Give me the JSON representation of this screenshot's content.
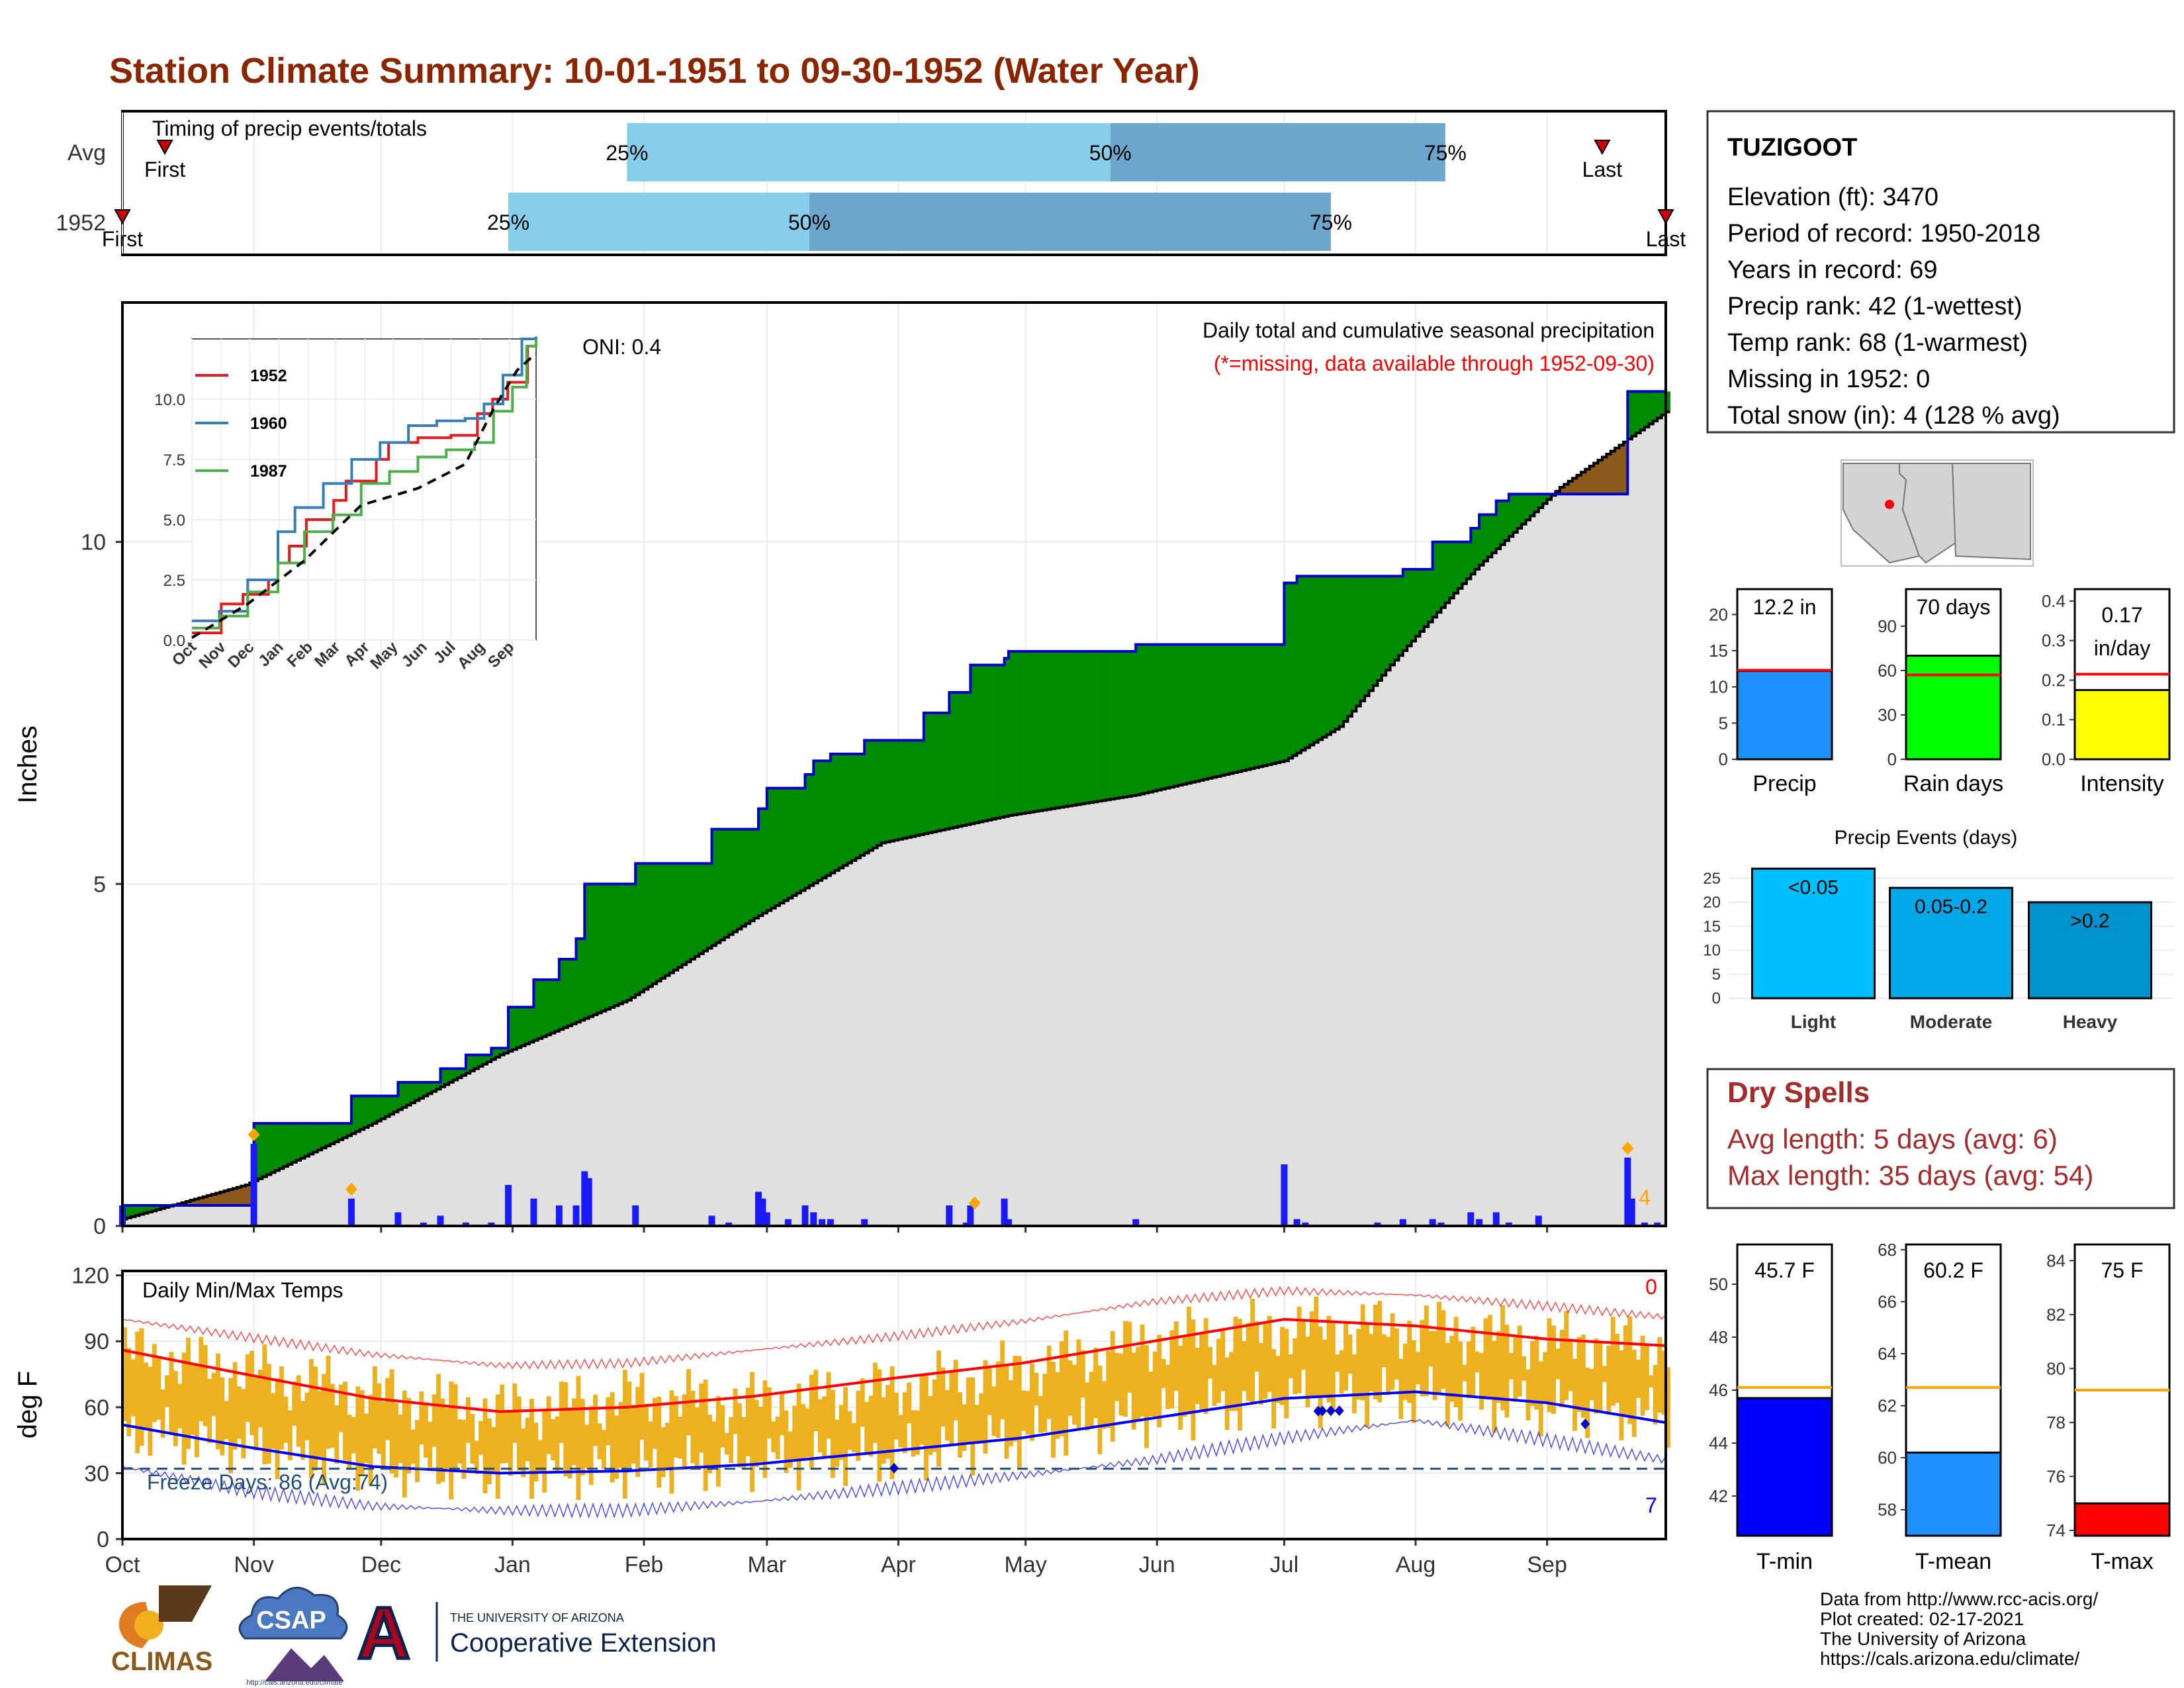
{
  "title": "Station Climate Summary: 10-01-1951 to 09-30-1952 (Water Year)",
  "colors": {
    "title": "#8B2500",
    "q_light": "#87CEEB",
    "q_dark": "#6CA6CD",
    "above": "#008B00",
    "below": "#8B5A1A",
    "cumfill": "#E0E0E0",
    "step": "#0000CD",
    "bars": "#1A1AFF",
    "orange": "#FFA500",
    "tempbar": "#EDB120",
    "tmax": "#FF0000",
    "tmin": "#0000FF"
  },
  "panels": {
    "timing": {
      "label": "Timing of precip events/totals",
      "rows": [
        {
          "label": "Avg",
          "first_label": "First",
          "last_label": "Last",
          "first_day": 11,
          "last_day": 350,
          "p25_day": 120,
          "p50_day": 234,
          "p75_day": 313
        },
        {
          "label": "1952",
          "first_label": "First",
          "last_label": "Last",
          "first_day": 1,
          "last_day": 365,
          "p25_day": 92,
          "p50_day": 163,
          "p75_day": 286
        }
      ],
      "pct_labels": [
        "25%",
        "50%",
        "75%"
      ]
    },
    "precip": {
      "ylabel": "Inches",
      "yticks": [
        "0",
        "5",
        "10"
      ],
      "oni": "ONI: 0.4",
      "note": "Daily total and cumulative seasonal precipitation",
      "note_red": "(*=missing, data available through 1952-09-30)",
      "snow_count": "4",
      "chart_data": {
        "type": "area",
        "ylim": [
          0,
          13.5
        ],
        "x_unit": "day of water year",
        "series": [
          {
            "name": "1952",
            "x": [
              1,
              32,
              32,
              55,
              55,
              66,
              66,
              76,
              76,
              82,
              82,
              88,
              88,
              92,
              92,
              98,
              98,
              104,
              104,
              108,
              108,
              110,
              110,
              122,
              122,
              140,
              140,
              151,
              151,
              153,
              153,
              162,
              162,
              164,
              164,
              168,
              168,
              176,
              176,
              190,
              190,
              196,
              196,
              201,
              201,
              209,
              209,
              210,
              210,
              240,
              240,
              275,
              275,
              278,
              278,
              303,
              303,
              310,
              310,
              319,
              319,
              321,
              321,
              325,
              325,
              328,
              328,
              335,
              335,
              356,
              356,
              365
            ],
            "y": [
              0.3,
              0.3,
              1.5,
              1.5,
              1.9,
              1.9,
              2.1,
              2.1,
              2.3,
              2.3,
              2.5,
              2.5,
              2.6,
              2.6,
              3.2,
              3.2,
              3.6,
              3.6,
              3.9,
              3.9,
              4.2,
              4.2,
              5.0,
              5.0,
              5.3,
              5.3,
              5.8,
              5.8,
              6.1,
              6.1,
              6.4,
              6.4,
              6.6,
              6.6,
              6.8,
              6.8,
              6.9,
              6.9,
              7.1,
              7.1,
              7.5,
              7.5,
              7.8,
              7.8,
              8.2,
              8.2,
              8.3,
              8.3,
              8.4,
              8.4,
              8.5,
              8.5,
              9.4,
              9.4,
              9.5,
              9.5,
              9.6,
              9.6,
              10.0,
              10.0,
              10.2,
              10.2,
              10.4,
              10.4,
              10.6,
              10.6,
              10.7,
              10.7,
              10.7,
              10.7,
              12.2,
              12.2
            ]
          },
          {
            "name": "Avg",
            "x": [
              1,
              30,
              60,
              90,
              120,
              150,
              180,
              210,
              240,
              275,
              288,
              300,
              320,
              340,
              365
            ],
            "y": [
              0.1,
              0.6,
              1.5,
              2.5,
              3.3,
              4.5,
              5.6,
              6.0,
              6.3,
              6.8,
              7.3,
              8.2,
              9.6,
              10.8,
              11.9
            ]
          }
        ],
        "daily_events": [
          {
            "day": 1,
            "in": 0.3
          },
          {
            "day": 32,
            "in": 1.2
          },
          {
            "day": 55,
            "in": 0.4
          },
          {
            "day": 66,
            "in": 0.2
          },
          {
            "day": 72,
            "in": 0.05
          },
          {
            "day": 76,
            "in": 0.15
          },
          {
            "day": 82,
            "in": 0.05
          },
          {
            "day": 88,
            "in": 0.05
          },
          {
            "day": 92,
            "in": 0.6
          },
          {
            "day": 98,
            "in": 0.4
          },
          {
            "day": 104,
            "in": 0.3
          },
          {
            "day": 108,
            "in": 0.3
          },
          {
            "day": 110,
            "in": 0.8
          },
          {
            "day": 111,
            "in": 0.7
          },
          {
            "day": 122,
            "in": 0.3
          },
          {
            "day": 140,
            "in": 0.15
          },
          {
            "day": 144,
            "in": 0.05
          },
          {
            "day": 151,
            "in": 0.5
          },
          {
            "day": 152,
            "in": 0.4
          },
          {
            "day": 153,
            "in": 0.2
          },
          {
            "day": 158,
            "in": 0.1
          },
          {
            "day": 162,
            "in": 0.3
          },
          {
            "day": 164,
            "in": 0.2
          },
          {
            "day": 166,
            "in": 0.1
          },
          {
            "day": 168,
            "in": 0.1
          },
          {
            "day": 176,
            "in": 0.1
          },
          {
            "day": 196,
            "in": 0.3
          },
          {
            "day": 200,
            "in": 0.05
          },
          {
            "day": 201,
            "in": 0.3
          },
          {
            "day": 209,
            "in": 0.4
          },
          {
            "day": 210,
            "in": 0.1
          },
          {
            "day": 240,
            "in": 0.1
          },
          {
            "day": 275,
            "in": 0.9
          },
          {
            "day": 278,
            "in": 0.1
          },
          {
            "day": 280,
            "in": 0.05
          },
          {
            "day": 297,
            "in": 0.05
          },
          {
            "day": 303,
            "in": 0.1
          },
          {
            "day": 310,
            "in": 0.1
          },
          {
            "day": 312,
            "in": 0.05
          },
          {
            "day": 319,
            "in": 0.2
          },
          {
            "day": 321,
            "in": 0.1
          },
          {
            "day": 325,
            "in": 0.2
          },
          {
            "day": 328,
            "in": 0.05
          },
          {
            "day": 335,
            "in": 0.15
          },
          {
            "day": 356,
            "in": 1.0
          },
          {
            "day": 357,
            "in": 0.4
          },
          {
            "day": 360,
            "in": 0.05
          },
          {
            "day": 363,
            "in": 0.05
          }
        ],
        "snow_days": [
          32,
          55,
          202,
          356
        ]
      },
      "inset": {
        "yticks": [
          "0.0",
          "2.5",
          "5.0",
          "7.5",
          "10.0"
        ],
        "xticks": [
          "Oct",
          "Nov",
          "Dec",
          "Jan",
          "Feb",
          "Mar",
          "Apr",
          "May",
          "Jun",
          "Jul",
          "Aug",
          "Sep"
        ],
        "chart_data": {
          "type": "line",
          "ylim": [
            0,
            12.5
          ],
          "series": [
            {
              "name": "1952",
              "color": "#E41A1C",
              "x": [
                1,
                32,
                55,
                82,
                92,
                104,
                122,
                151,
                164,
                196,
                209,
                240,
                275,
                303,
                319,
                335,
                356,
                365
              ],
              "y": [
                0.3,
                1.5,
                1.9,
                2.5,
                3.2,
                3.9,
                5.0,
                5.8,
                6.6,
                7.5,
                8.2,
                8.4,
                8.5,
                9.4,
                10.0,
                10.7,
                12.2,
                12.2
              ]
            },
            {
              "name": "1960",
              "color": "#377EB8",
              "x": [
                1,
                30,
                60,
                92,
                110,
                140,
                170,
                200,
                230,
                260,
                290,
                310,
                330,
                350,
                365
              ],
              "y": [
                0.8,
                1.2,
                2.5,
                4.5,
                5.5,
                6.5,
                7.5,
                8.2,
                8.9,
                9.1,
                9.2,
                9.8,
                11.0,
                12.5,
                12.6
              ]
            },
            {
              "name": "1987",
              "color": "#4DAF4A",
              "x": [
                1,
                30,
                60,
                92,
                120,
                150,
                180,
                210,
                240,
                270,
                300,
                320,
                340,
                355,
                365
              ],
              "y": [
                0.5,
                1.0,
                2.0,
                3.2,
                4.5,
                5.2,
                6.5,
                7.0,
                7.6,
                7.9,
                8.2,
                9.5,
                10.5,
                12.2,
                12.5
              ]
            }
          ],
          "avg": {
            "x": [
              1,
              60,
              120,
              180,
              240,
              290,
              320,
              345,
              365
            ],
            "y": [
              0.1,
              1.5,
              3.3,
              5.6,
              6.3,
              7.3,
              9.6,
              11.2,
              11.9
            ]
          }
        }
      }
    },
    "temps": {
      "label": "Daily Min/Max Temps",
      "ylabel": "deg F",
      "yticks": [
        "0",
        "30",
        "60",
        "90",
        "120"
      ],
      "freeze_text": "Freeze Days: 86 (Avg:74)",
      "count_red": "0",
      "count_blue": "7",
      "freeze_line": 32,
      "xticks": [
        "Oct",
        "Nov",
        "Dec",
        "Jan",
        "Feb",
        "Mar",
        "Apr",
        "May",
        "Jun",
        "Jul",
        "Aug",
        "Sep"
      ],
      "chart_data": {
        "type": "line",
        "ylim": [
          0,
          122
        ],
        "avg_max": {
          "x": [
            1,
            30,
            60,
            90,
            120,
            150,
            182,
            213,
            244,
            275,
            306,
            337,
            365
          ],
          "y": [
            86,
            75,
            64,
            58,
            60,
            65,
            73,
            80,
            90,
            100,
            97,
            91,
            88
          ]
        },
        "avg_min": {
          "x": [
            1,
            30,
            60,
            90,
            120,
            150,
            182,
            213,
            244,
            275,
            306,
            337,
            365
          ],
          "y": [
            52,
            42,
            33,
            30,
            31,
            34,
            40,
            46,
            55,
            64,
            67,
            62,
            53
          ]
        },
        "rec_max": {
          "x": [
            1,
            30,
            60,
            90,
            120,
            150,
            182,
            213,
            244,
            275,
            306,
            337,
            365
          ],
          "y": [
            100,
            92,
            84,
            79,
            80,
            86,
            92,
            99,
            108,
            113,
            111,
            106,
            101
          ]
        },
        "rec_min": {
          "x": [
            1,
            30,
            60,
            90,
            120,
            150,
            182,
            213,
            244,
            275,
            306,
            337,
            365
          ],
          "y": [
            33,
            22,
            15,
            13,
            13,
            17,
            23,
            29,
            36,
            46,
            54,
            45,
            36
          ]
        },
        "obs_min": {
          "x": [
            1,
            30,
            60,
            90,
            120,
            150,
            182,
            213,
            244,
            275,
            306,
            337,
            365
          ],
          "y": [
            50,
            42,
            33,
            30,
            32,
            35,
            38,
            46,
            56,
            64,
            65,
            60,
            55
          ]
        },
        "obs_max": {
          "x": [
            1,
            30,
            60,
            90,
            120,
            150,
            182,
            213,
            244,
            275,
            306,
            337,
            365
          ],
          "y": [
            85,
            76,
            66,
            58,
            64,
            62,
            68,
            77,
            90,
            96,
            96,
            90,
            88
          ]
        },
        "record_lows": [
          183,
          283,
          284,
          286,
          288,
          346
        ]
      }
    }
  },
  "sidebar": {
    "station": "TUZIGOOT",
    "lines": [
      "Elevation (ft): 3470",
      "Period of record: 1950-2018",
      "Years in record: 69",
      "Precip rank: 42 (1-wettest)",
      "Temp rank: 68 (1-warmest)",
      "Missing in 1952: 0",
      "Total snow (in): 4 (128 % avg)"
    ],
    "minibars": [
      {
        "label": "Precip",
        "value_text": "12.2 in",
        "value": 12.2,
        "avg": 12.3,
        "ymax": 23.5,
        "ticks": [
          "0",
          "5",
          "10",
          "15",
          "20"
        ],
        "tickvals": [
          0,
          5,
          10,
          15,
          20
        ],
        "color": "#1E90FF"
      },
      {
        "label": "Rain days",
        "value_text": "70 days",
        "value": 70,
        "avg": 57,
        "ymax": 115,
        "ticks": [
          "0",
          "30",
          "60",
          "90"
        ],
        "tickvals": [
          0,
          30,
          60,
          90
        ],
        "color": "#00FF00"
      },
      {
        "label": "Intensity",
        "value_text1": "0.17",
        "value_text2": "in/day",
        "value": 0.175,
        "avg": 0.215,
        "ymax": 0.43,
        "ticks": [
          "0.0",
          "0.1",
          "0.2",
          "0.3",
          "0.4"
        ],
        "tickvals": [
          0,
          0.1,
          0.2,
          0.3,
          0.4
        ],
        "color": "#FFFF00"
      }
    ],
    "events": {
      "title": "Precip Events (days)",
      "ticks": [
        "0",
        "5",
        "10",
        "15",
        "20",
        "25"
      ],
      "chart_data": {
        "type": "bar",
        "categories": [
          "Light",
          "Moderate",
          "Heavy"
        ],
        "labels": [
          "<0.05",
          "0.05-0.2",
          ">0.2"
        ],
        "values": [
          27,
          23,
          20
        ],
        "ylim": [
          0,
          28
        ],
        "colors": [
          "#00BFFF",
          "#00A8E8",
          "#0092CC"
        ]
      }
    },
    "dry": {
      "title": "Dry Spells",
      "line1": "Avg length: 5 days (avg: 6)",
      "line2": "Max length: 35 days (avg: 54)"
    },
    "tempbars": [
      {
        "label": "T-min",
        "value_text": "45.7 F",
        "value": 45.7,
        "avg": 46.1,
        "ymin": 40.5,
        "ymax": 51.5,
        "ticks": [
          "42",
          "44",
          "46",
          "48",
          "50"
        ],
        "tickvals": [
          42,
          44,
          46,
          48,
          50
        ],
        "color": "#0000FF"
      },
      {
        "label": "T-mean",
        "value_text": "60.2 F",
        "value": 60.2,
        "avg": 62.7,
        "ymin": 57,
        "ymax": 68.2,
        "ticks": [
          "58",
          "60",
          "62",
          "64",
          "66",
          "68"
        ],
        "tickvals": [
          58,
          60,
          62,
          64,
          66,
          68
        ],
        "color": "#1E90FF"
      },
      {
        "label": "T-max",
        "value_text": "75 F",
        "value": 75,
        "avg": 79.2,
        "ymin": 73.8,
        "ymax": 84.6,
        "ticks": [
          "74",
          "76",
          "78",
          "80",
          "82",
          "84"
        ],
        "tickvals": [
          74,
          76,
          78,
          80,
          82,
          84
        ],
        "color": "#FF0000"
      }
    ]
  },
  "footer": {
    "credits": [
      "Data from http://www.rcc-acis.org/",
      "Plot created: 02-17-2021",
      "The University of Arizona",
      "https://cals.arizona.edu/climate/"
    ],
    "climas": "CLIMAS",
    "csap": "CSAP",
    "csap_url": "http://cals.arizona.edu/climate",
    "ua_small": "THE UNIVERSITY OF ARIZONA",
    "ua_big": "Cooperative Extension",
    "ua_letter": "A"
  }
}
